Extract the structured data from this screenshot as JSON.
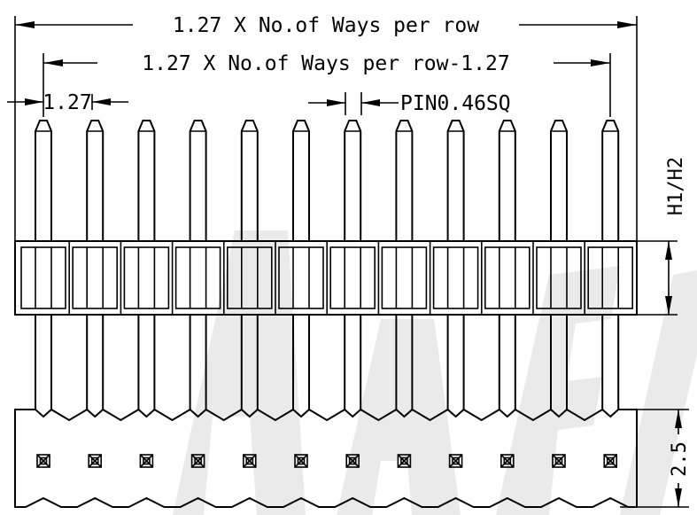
{
  "dimensions": {
    "overall_width_label": "1.27 X No.of Ways per row",
    "pin_span_label": "1.27 X No.of Ways per row-1.27",
    "pitch_label": "1.27",
    "pin_size_label": "PIN0.46SQ",
    "height_label": "H1/H2",
    "base_height_label": "2.5"
  },
  "connector": {
    "pins_per_row": 12
  }
}
